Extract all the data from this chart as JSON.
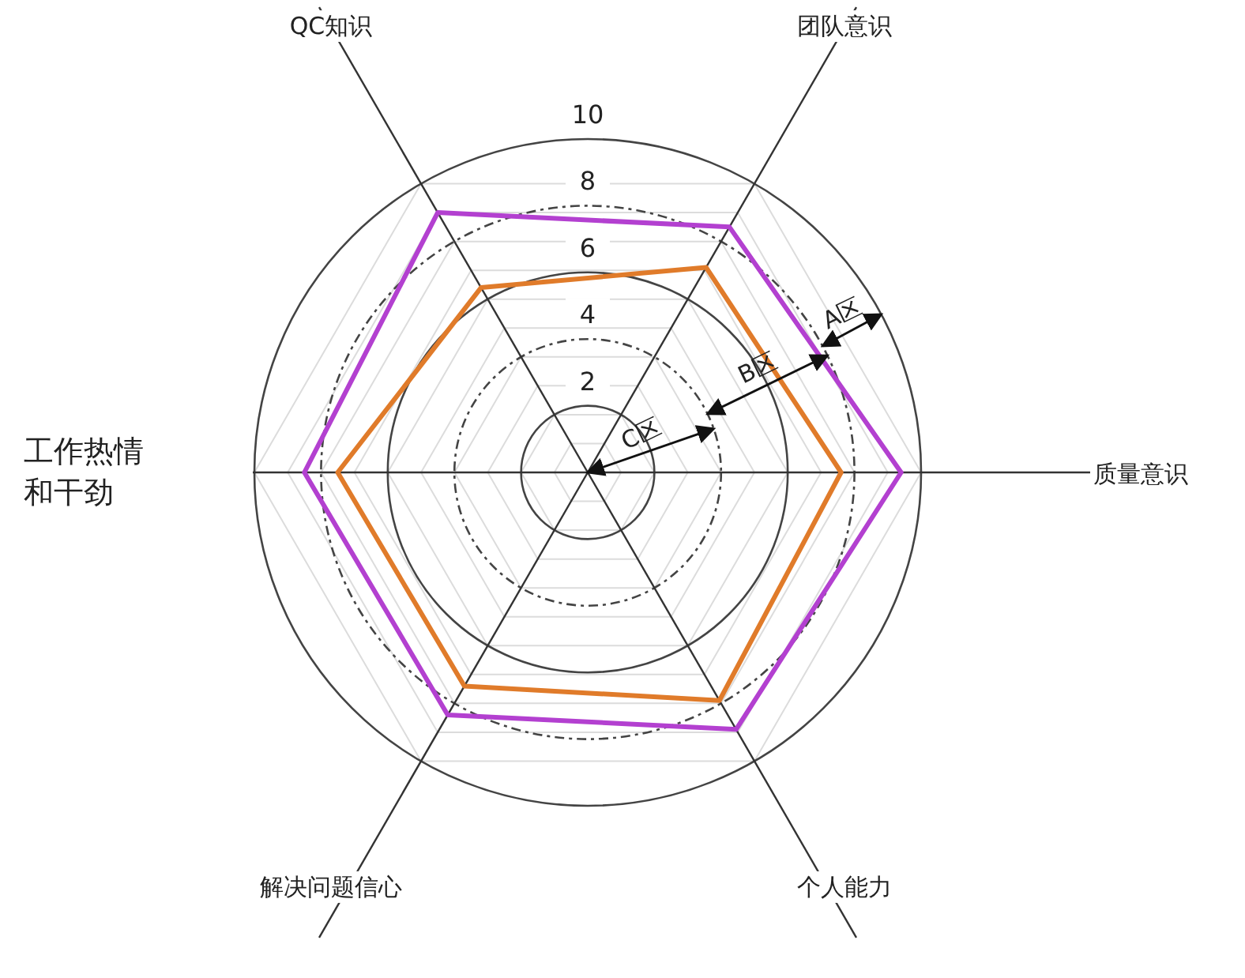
{
  "chart_data": {
    "type": "radar",
    "categories": [
      "团队意识",
      "质量意识",
      "个人能力",
      "解决问题信心",
      "工作热情和干劲",
      "QC知识"
    ],
    "series": [
      {
        "color": "#b340d0",
        "values": [
          8.5,
          9.4,
          8.9,
          8.4,
          8.5,
          9.0
        ]
      },
      {
        "color": "#e07b2a",
        "values": [
          7.1,
          7.6,
          7.9,
          7.4,
          7.5,
          6.4
        ]
      }
    ],
    "ylim": [
      0,
      10
    ],
    "yticks": [
      2,
      4,
      6,
      8,
      10
    ],
    "grid": true,
    "annotations": [
      "A区",
      "B区",
      "C区"
    ]
  }
}
